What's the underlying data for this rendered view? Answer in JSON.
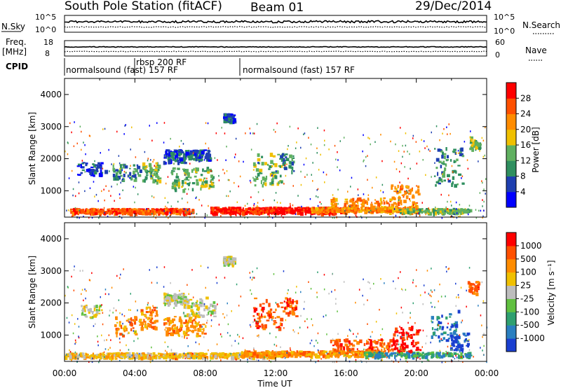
{
  "header": {
    "title": "South Pole Station (fitACF)",
    "beam": "Beam 01",
    "date": "29/Dec/2014"
  },
  "meta_panels": {
    "left_labels": {
      "nsky": "N.Sky",
      "freq": "Freq.",
      "mhz": "[MHz]",
      "cpid": "CPID"
    },
    "right_labels": {
      "nsearch": "N.Search",
      "nave": "Nave"
    },
    "noise_ticks_left": [
      "10^5",
      "10^0"
    ],
    "noise_ticks_right": [
      "10^5",
      "10^0"
    ],
    "freq_ticks": [
      "18",
      "8"
    ],
    "nave_ticks": [
      "60",
      "0"
    ],
    "cpid_segments": [
      {
        "label": "normalsound (fast) 157 RF",
        "start_hour": 0,
        "end_hour": 4
      },
      {
        "label": "rbsp 200 RF",
        "start_hour": 4,
        "end_hour": 10
      },
      {
        "label": "normalsound (fast) 157 RF",
        "start_hour": 10,
        "end_hour": 24
      }
    ]
  },
  "chart_data": [
    {
      "type": "heatmap",
      "name": "power-panel",
      "ylabel": "Slant Range [km]",
      "xlabel": "Time UT",
      "x_ticks": [
        "00:00",
        "04:00",
        "08:00",
        "12:00",
        "16:00",
        "20:00",
        "00:00"
      ],
      "y_ticks": [
        1000,
        2000,
        3000,
        4000
      ],
      "xlim_hours": [
        0,
        24
      ],
      "ylim_km": [
        180,
        4500
      ],
      "colorbar": {
        "label": "Power [dB]",
        "ticks": [
          "4",
          "8",
          "12",
          "16",
          "20",
          "24",
          "28"
        ],
        "colors": [
          "#0000ff",
          "#1e3fb0",
          "#2f8f5f",
          "#60b060",
          "#f0c000",
          "#ff8c00",
          "#ff5000",
          "#ff0000"
        ]
      }
    },
    {
      "type": "heatmap",
      "name": "velocity-panel",
      "ylabel": "Slant Range [km]",
      "xlabel": "Time UT",
      "x_ticks": [
        "00:00",
        "04:00",
        "08:00",
        "12:00",
        "16:00",
        "20:00",
        "00:00"
      ],
      "y_ticks": [
        1000,
        2000,
        3000,
        4000
      ],
      "xlim_hours": [
        0,
        24
      ],
      "ylim_km": [
        180,
        4500
      ],
      "colorbar": {
        "label": "Velocity [m s⁻¹]",
        "ticks": [
          "1000",
          "500",
          "100",
          "25",
          "-25",
          "-100",
          "-500",
          "-1000"
        ],
        "colors": [
          "#1a3fd0",
          "#2a7fc0",
          "#2fa070",
          "#60c040",
          "#bdbdbd",
          "#f0c000",
          "#ff8c00",
          "#ff5000",
          "#ff0000"
        ]
      }
    }
  ],
  "axis": {
    "xlabel": "Time UT",
    "ylabel": "Slant Range [km]"
  }
}
